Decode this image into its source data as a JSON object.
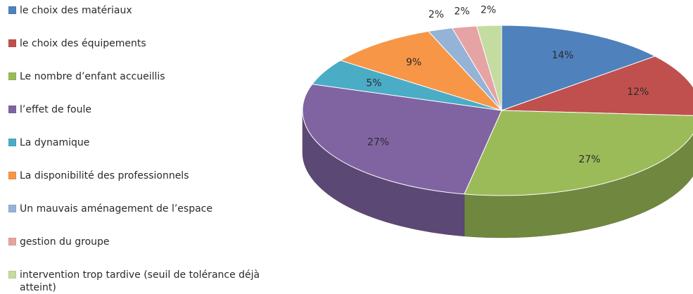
{
  "chart_data": {
    "type": "pie",
    "style": "3d-exploded-none",
    "legend_position": "left",
    "slices": [
      {
        "label": "le choix des matériaux",
        "value": 14,
        "display": "14%",
        "color": "#4f81bd"
      },
      {
        "label": "le choix des équipements",
        "value": 12,
        "display": "12%",
        "color": "#c0504d"
      },
      {
        "label": "Le nombre d’enfant accueillis",
        "value": 27,
        "display": "27%",
        "color": "#9bbb59"
      },
      {
        "label": "l’effet de foule",
        "value": 27,
        "display": "27%",
        "color": "#8064a2"
      },
      {
        "label": "La dynamique",
        "value": 5,
        "display": "5%",
        "color": "#4bacc6"
      },
      {
        "label": "La disponibilité des professionnels",
        "value": 9,
        "display": "9%",
        "color": "#f79646"
      },
      {
        "label": "Un mauvais aménagement de l’espace",
        "value": 2,
        "display": "2%",
        "color": "#95b3d7"
      },
      {
        "label": "gestion du groupe",
        "value": 2,
        "display": "2%",
        "color": "#e6a3a3"
      },
      {
        "label": "intervention trop tardive (seuil de tolérance déjà atteint)",
        "value": 2,
        "display": "2%",
        "color": "#c4dca0"
      }
    ]
  }
}
